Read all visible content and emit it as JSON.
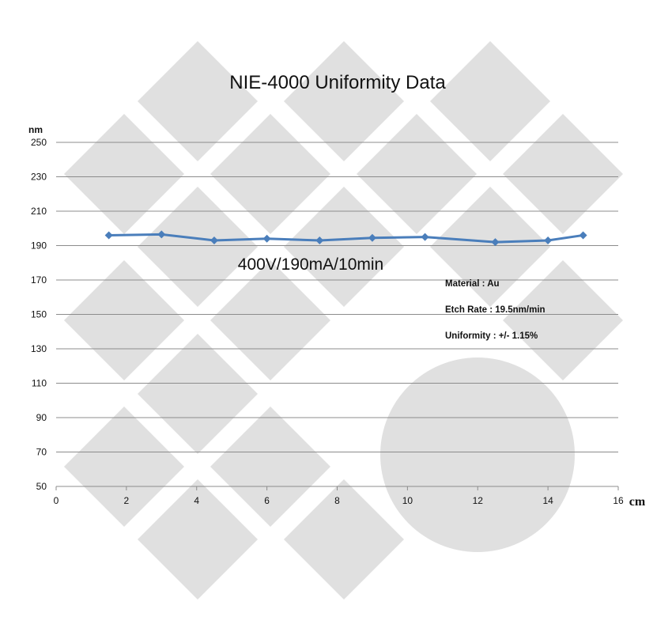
{
  "chart_data": {
    "type": "line",
    "title": "NIE-4000 Uniformity Data",
    "ylabel": "nm",
    "xlabel": "cm",
    "xlim": [
      0,
      16
    ],
    "ylim": [
      50,
      250
    ],
    "xticks": [
      0,
      2,
      4,
      6,
      8,
      10,
      12,
      14,
      16
    ],
    "yticks": [
      50,
      70,
      90,
      110,
      130,
      150,
      170,
      190,
      210,
      230,
      250
    ],
    "grid": "horizontal",
    "series": [
      {
        "color": "#4a7ebb",
        "marker": "diamond",
        "x": [
          1.5,
          3,
          4.5,
          6,
          7.5,
          9,
          10.5,
          12.5,
          14,
          15
        ],
        "values": [
          196,
          196.5,
          193,
          194,
          193,
          194.5,
          195,
          192,
          193,
          196
        ]
      }
    ],
    "annotations": {
      "conditions": "400V/190mA/10min",
      "material": "Material : Au",
      "etch_rate": "Etch Rate : 19.5nm/min",
      "uniformity": "Uniformity : +/- 1.15%"
    },
    "watermark": {
      "color": "#e0e0e0",
      "shapes": "diamond-pattern-and-circle"
    }
  }
}
